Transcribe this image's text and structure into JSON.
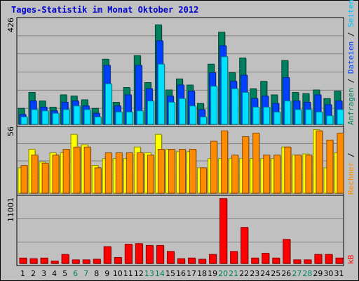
{
  "title": "Tages-Statistik im Monat Oktober 2012",
  "colors": {
    "background": "#c0c0c0",
    "title": "#0000cc",
    "panel_border": "#000000",
    "grid": "#808080",
    "anfragen": "#007f5f",
    "dateien": "#0040ff",
    "seiten": "#00e0ff",
    "besuche": "#ff8c00",
    "rechner": "#ffff00",
    "kb": "#ff0000",
    "label_weekend": "#00805f",
    "label_weekday": "#000000"
  },
  "right_labels": {
    "top": [
      {
        "text": "Anfragen",
        "color": "#007f5f"
      },
      {
        "text": " / ",
        "color": "#000000"
      },
      {
        "text": "Dateien",
        "color": "#0040ff"
      },
      {
        "text": " / ",
        "color": "#000000"
      },
      {
        "text": "Seiten",
        "color": "#00c0ff"
      },
      {
        "text": " / ",
        "color": "#000000"
      },
      {
        "text": "Besuche",
        "color": "#ff8c00"
      }
    ],
    "middle": [
      {
        "text": "Rechner",
        "color": "#ff8c00"
      },
      {
        "text": " / ",
        "color": "#000000"
      }
    ],
    "bottom": [
      {
        "text": "kB",
        "color": "#ff0000"
      }
    ]
  },
  "chart_data": [
    {
      "type": "bar",
      "ylabel": "426",
      "ylim": [
        0,
        426
      ],
      "categories": [
        "1",
        "2",
        "3",
        "4",
        "5",
        "6",
        "7",
        "8",
        "9",
        "10",
        "11",
        "12",
        "13",
        "14",
        "15",
        "16",
        "17",
        "18",
        "19",
        "20",
        "21",
        "22",
        "23",
        "24",
        "25",
        "26",
        "27",
        "28",
        "29",
        "30",
        "31"
      ],
      "weekend_days": [
        "6",
        "7",
        "13",
        "14",
        "20",
        "21",
        "27",
        "28"
      ],
      "series": [
        {
          "name": "Anfragen",
          "values": [
            65,
            130,
            95,
            70,
            120,
            115,
            100,
            65,
            265,
            90,
            150,
            280,
            170,
            405,
            140,
            185,
            160,
            85,
            245,
            375,
            210,
            270,
            145,
            175,
            120,
            260,
            130,
            125,
            140,
            105,
            135
          ]
        },
        {
          "name": "Dateien",
          "values": [
            40,
            95,
            70,
            55,
            90,
            95,
            75,
            45,
            240,
            75,
            120,
            240,
            145,
            340,
            115,
            160,
            135,
            60,
            210,
            320,
            175,
            200,
            105,
            115,
            85,
            190,
            95,
            90,
            120,
            80,
            95
          ]
        },
        {
          "name": "Seiten",
          "values": [
            30,
            60,
            55,
            45,
            60,
            75,
            60,
            30,
            165,
            50,
            50,
            55,
            95,
            245,
            90,
            105,
            75,
            30,
            155,
            275,
            145,
            130,
            70,
            70,
            50,
            95,
            60,
            60,
            50,
            35,
            60
          ]
        }
      ]
    },
    {
      "type": "bar",
      "ylabel": "56",
      "ylim": [
        0,
        56
      ],
      "categories": [
        "1",
        "2",
        "3",
        "4",
        "5",
        "6",
        "7",
        "8",
        "9",
        "10",
        "11",
        "12",
        "13",
        "14",
        "15",
        "16",
        "17",
        "18",
        "19",
        "20",
        "21",
        "22",
        "23",
        "24",
        "25",
        "26",
        "27",
        "28",
        "29",
        "30",
        "31"
      ],
      "series": [
        {
          "name": "Besuche",
          "values": [
            24,
            33,
            26,
            33,
            38,
            40,
            40,
            22,
            35,
            35,
            35,
            35,
            33,
            38,
            38,
            38,
            38,
            22,
            45,
            54,
            33,
            49,
            52,
            33,
            33,
            40,
            33,
            33,
            54,
            46,
            52
          ]
        },
        {
          "name": "Rechner",
          "values": [
            22,
            38,
            27,
            35,
            35,
            51,
            42,
            24,
            30,
            30,
            30,
            40,
            35,
            51,
            38,
            36,
            36,
            22,
            30,
            30,
            30,
            30,
            30,
            30,
            30,
            40,
            33,
            34,
            55,
            22,
            35
          ]
        }
      ]
    },
    {
      "type": "bar",
      "ylabel": "11001",
      "ylim": [
        0,
        11001
      ],
      "categories": [
        "1",
        "2",
        "3",
        "4",
        "5",
        "6",
        "7",
        "8",
        "9",
        "10",
        "11",
        "12",
        "13",
        "14",
        "15",
        "16",
        "17",
        "18",
        "19",
        "20",
        "21",
        "22",
        "23",
        "24",
        "25",
        "26",
        "27",
        "28",
        "29",
        "30",
        "31"
      ],
      "series": [
        {
          "name": "kB",
          "values": [
            900,
            800,
            900,
            400,
            1500,
            600,
            600,
            700,
            2800,
            1000,
            3200,
            3300,
            3000,
            3000,
            2000,
            800,
            900,
            700,
            1500,
            10800,
            2000,
            6000,
            900,
            1700,
            900,
            4000,
            600,
            600,
            1500,
            1500,
            900
          ]
        }
      ]
    }
  ]
}
